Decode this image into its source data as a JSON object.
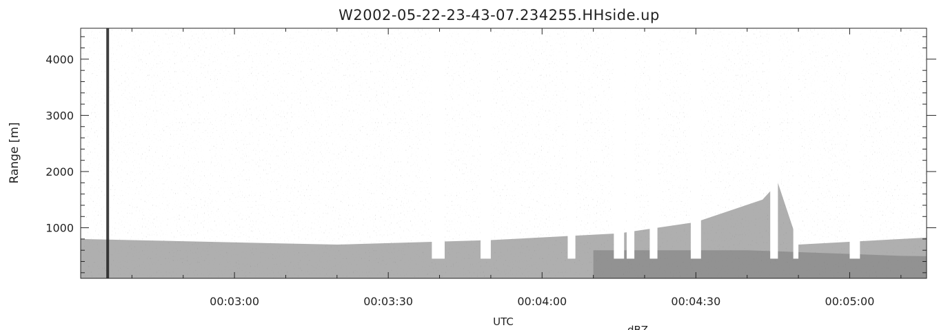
{
  "chart_data": {
    "type": "heatmap",
    "title": "W2002-05-22-23-43-07.234255.HHside.up",
    "xlabel": "UTC",
    "ylabel": "Range [m]",
    "colorbar_label": "dBZ",
    "x_range": [
      "00:02:30",
      "00:05:15"
    ],
    "y_range": [
      100,
      4550
    ],
    "x_ticks": [
      "00:03:00",
      "00:03:30",
      "00:04:00",
      "00:04:30",
      "00:05:00"
    ],
    "y_ticks": [
      1000,
      2000,
      3000,
      4000
    ],
    "colors": {
      "echo": "#6e6e6e",
      "speckle": "#8a8a8a",
      "dark": "#1e1e1e"
    }
  }
}
